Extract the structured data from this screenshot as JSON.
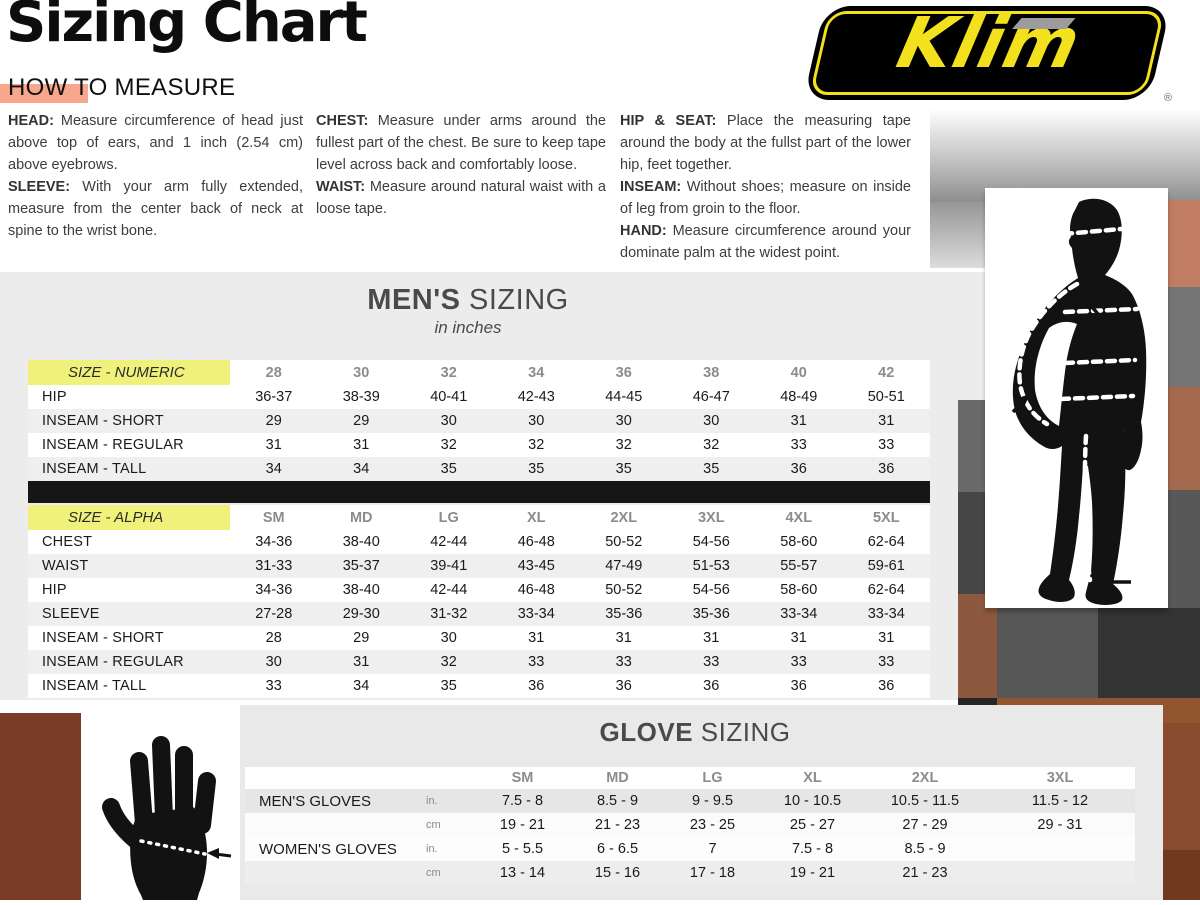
{
  "header": {
    "title": "Sizing Chart",
    "subtitle": "HOW TO MEASURE",
    "brand": "Klim",
    "registered": "®"
  },
  "instructions": {
    "col1": [
      {
        "label": "HEAD:",
        "text": "Measure circumference of head just above top of ears, and 1 inch (2.54 cm) above eyebrows."
      },
      {
        "label": "SLEEVE:",
        "text": "With your arm fully extended, measure from the center back of neck at spine to the wrist bone."
      }
    ],
    "col2": [
      {
        "label": "CHEST:",
        "text": "Measure under arms around the fullest part of the chest. Be sure to keep tape level across back and comfortably loose."
      },
      {
        "label": "WAIST:",
        "text": "Measure around natural waist with a loose tape."
      }
    ],
    "col3": [
      {
        "label": "HIP & SEAT:",
        "text": "Place the measuring tape around the body at the fullst part of the lower hip, feet together."
      },
      {
        "label": "INSEAM:",
        "text": "Without shoes; measure on inside of leg from groin to the floor."
      },
      {
        "label": "HAND:",
        "text": "Measure circumference around your dominate palm at the widest point."
      }
    ]
  },
  "mens": {
    "title_bold": "MEN'S",
    "title_rest": " SIZING",
    "subtitle": "in inches",
    "numeric_table": {
      "label": "SIZE - NUMERIC",
      "columns": [
        "28",
        "30",
        "32",
        "34",
        "36",
        "38",
        "40",
        "42"
      ],
      "rows": [
        {
          "label": "HIP",
          "values": [
            "36-37",
            "38-39",
            "40-41",
            "42-43",
            "44-45",
            "46-47",
            "48-49",
            "50-51"
          ]
        },
        {
          "label": "INSEAM - SHORT",
          "values": [
            "29",
            "29",
            "30",
            "30",
            "30",
            "30",
            "31",
            "31"
          ]
        },
        {
          "label": "INSEAM - REGULAR",
          "values": [
            "31",
            "31",
            "32",
            "32",
            "32",
            "32",
            "33",
            "33"
          ]
        },
        {
          "label": "INSEAM - TALL",
          "values": [
            "34",
            "34",
            "35",
            "35",
            "35",
            "35",
            "36",
            "36"
          ]
        }
      ]
    },
    "alpha_table": {
      "label": "SIZE - ALPHA",
      "columns": [
        "SM",
        "MD",
        "LG",
        "XL",
        "2XL",
        "3XL",
        "4XL",
        "5XL"
      ],
      "rows": [
        {
          "label": "CHEST",
          "values": [
            "34-36",
            "38-40",
            "42-44",
            "46-48",
            "50-52",
            "54-56",
            "58-60",
            "62-64"
          ]
        },
        {
          "label": "WAIST",
          "values": [
            "31-33",
            "35-37",
            "39-41",
            "43-45",
            "47-49",
            "51-53",
            "55-57",
            "59-61"
          ]
        },
        {
          "label": "HIP",
          "values": [
            "34-36",
            "38-40",
            "42-44",
            "46-48",
            "50-52",
            "54-56",
            "58-60",
            "62-64"
          ]
        },
        {
          "label": "SLEEVE",
          "values": [
            "27-28",
            "29-30",
            "31-32",
            "33-34",
            "35-36",
            "35-36",
            "33-34",
            "33-34"
          ]
        },
        {
          "label": "INSEAM - SHORT",
          "values": [
            "28",
            "29",
            "30",
            "31",
            "31",
            "31",
            "31",
            "31"
          ]
        },
        {
          "label": "INSEAM - REGULAR",
          "values": [
            "30",
            "31",
            "32",
            "33",
            "33",
            "33",
            "33",
            "33"
          ]
        },
        {
          "label": "INSEAM - TALL",
          "values": [
            "33",
            "34",
            "35",
            "36",
            "36",
            "36",
            "36",
            "36"
          ]
        }
      ]
    }
  },
  "gloves": {
    "title_bold": "GLOVE",
    "title_rest": " SIZING",
    "table": {
      "columns": [
        "SM",
        "MD",
        "LG",
        "XL",
        "2XL",
        "3XL"
      ],
      "rows": [
        {
          "label": "MEN'S GLOVES",
          "unit": "in.",
          "values": [
            "7.5 - 8",
            "8.5 - 9",
            "9 - 9.5",
            "10 - 10.5",
            "10.5 - 11.5",
            "11.5 - 12"
          ]
        },
        {
          "label": "",
          "unit": "cm",
          "values": [
            "19 - 21",
            "21 - 23",
            "23 - 25",
            "25 - 27",
            "27 - 29",
            "29 - 31"
          ]
        },
        {
          "label": "WOMEN'S GLOVES",
          "unit": "in.",
          "values": [
            "5 - 5.5",
            "6 - 6.5",
            "7",
            "7.5 - 8",
            "8.5 - 9",
            ""
          ]
        },
        {
          "label": "",
          "unit": "cm",
          "values": [
            "13 - 14",
            "15 - 16",
            "17 - 18",
            "19 - 21",
            "21 - 23",
            ""
          ]
        }
      ]
    }
  },
  "colors": {
    "brand_yellow": "#f2e11c",
    "highlight_salmon": "#f6a78c",
    "table_label_yellow": "#eff17a",
    "panel_gray": "#ececec",
    "divider_black": "#161616",
    "collage_brown": "#8a4a2d",
    "collage_gray": "#575757"
  }
}
